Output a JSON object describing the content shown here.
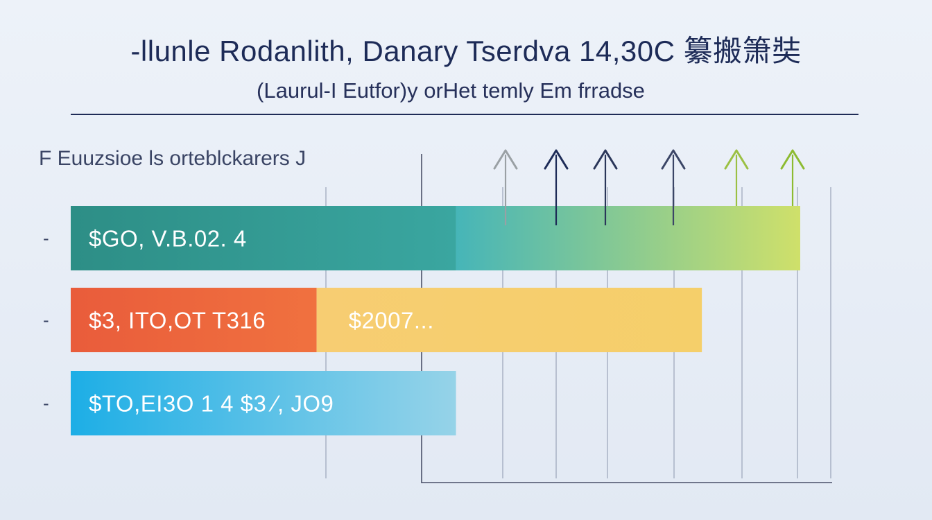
{
  "header": {
    "title": "-llunle Rodanlith, Danary Tserdva 14,30C 纂搬箫奘",
    "subtitle": "(Laurul-I Eutfor)y orHet temly Em frradse",
    "series_caption": "F Euuzsioe ls orteblckarers J"
  },
  "chart_data": {
    "type": "bar",
    "orientation": "horizontal",
    "stacked": true,
    "title": "-llunle Rodanlith, Danary Tserdva 14,30C 纂搬箫奘",
    "subtitle": "(Laurul-I Eutfor)y orHet temly Em frradse",
    "xlim": [
      0,
      100
    ],
    "grid": true,
    "legend": "none",
    "rows": [
      {
        "marker": "-",
        "segments": [
          {
            "value": 47,
            "label": "$GO, V.B.02. 4",
            "color_start": "#2d8e86",
            "color_end": "#3aa6a0"
          },
          {
            "value": 42,
            "label": "",
            "color_start": "#46b5b8",
            "color_end": "#cfe06a"
          }
        ]
      },
      {
        "marker": "-",
        "segments": [
          {
            "value": 30,
            "label": "$3, ITO,OT T316",
            "color_start": "#e95c3b",
            "color_end": "#f0713f"
          },
          {
            "value": 47,
            "label": "$2007...",
            "color_start": "#f7cd72",
            "color_end": "#f5cf6a"
          }
        ]
      },
      {
        "marker": "-",
        "segments": [
          {
            "value": 47,
            "label": "$TO,EI3O 1 4 $3 ⁄, JO9",
            "color_start": "#1daee6",
            "color_end": "#96d3e8"
          }
        ]
      }
    ],
    "markers": [
      {
        "x": 51,
        "color": "#9aa0a4",
        "top": 217
      },
      {
        "x": 57,
        "color": "#1d2b57",
        "top": 217
      },
      {
        "x": 63,
        "color": "#2a3659",
        "top": 217
      },
      {
        "x": 71,
        "color": "#3b4566",
        "top": 217
      },
      {
        "x": 79,
        "color": "#9bc043",
        "top": 217
      },
      {
        "x": 85,
        "color": "#8dbb31",
        "top": 217
      }
    ]
  },
  "colors": {
    "background": "#e9eef6",
    "text_dark": "#1d2b57",
    "axis": "#4a5068",
    "gridline": "#9aa3b8"
  }
}
